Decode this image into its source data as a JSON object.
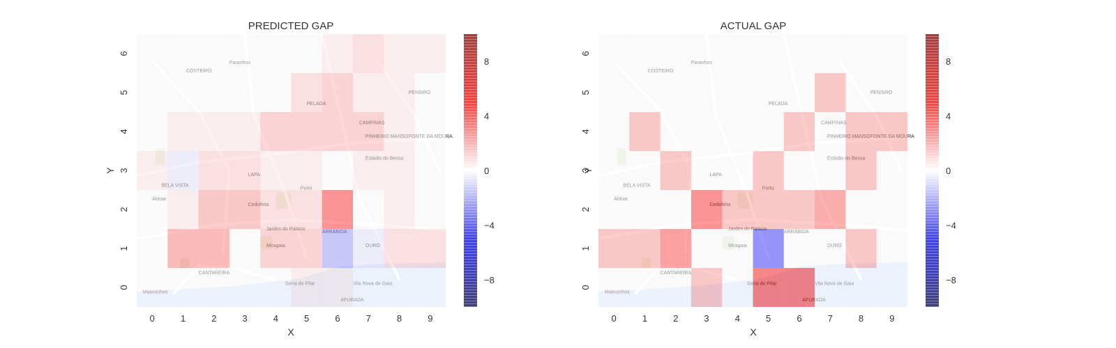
{
  "colors": {
    "map_base": "#f4f4f4",
    "road": "#ffffff",
    "water": "#d6e4f7",
    "park": "#e1ebd2",
    "map_label": "#b0b0b0",
    "text": "#333333"
  },
  "colorbar": {
    "ticks": [
      "8",
      "4",
      "0",
      "−4",
      "−8"
    ],
    "tick_values": [
      8,
      4,
      0,
      -4,
      -8
    ],
    "range": [
      -10,
      10
    ],
    "colormap": "seismic",
    "alpha": 0.5
  },
  "map_labels": [
    "Paranhos",
    "COSTEIRO",
    "PELADA",
    "CAMPINAS",
    "PENSIRO",
    "PINHEIRO MANSO",
    "FONTE DA MOURA",
    "Estádio do Bessa",
    "LAPA",
    "Porto",
    "Aldoar",
    "Cedofeita",
    "Jardim do Palácio",
    "Miragaia",
    "ARRÁBIDA",
    "OURO",
    "Vila Nova de Gaia",
    "Serra do Pilar",
    "AFURADA",
    "CANTAREIRA",
    "Matosinhos",
    "BELA VISTA"
  ],
  "chart_data": [
    {
      "type": "heatmap",
      "title": "PREDICTED GAP",
      "xlabel": "X",
      "ylabel": "Y",
      "x": [
        "0",
        "1",
        "2",
        "3",
        "4",
        "5",
        "6",
        "7",
        "8",
        "9"
      ],
      "y": [
        "0",
        "1",
        "2",
        "3",
        "4",
        "5",
        "6"
      ],
      "clim": [
        -10,
        10
      ],
      "values": [
        [
          0.0,
          0.0,
          0.0,
          0.0,
          0.0,
          0.5,
          0.5,
          0.0,
          0.0,
          0.0
        ],
        [
          0.0,
          2.5,
          2.5,
          0.0,
          1.5,
          1.5,
          -2.0,
          -0.5,
          1.0,
          1.0
        ],
        [
          0.0,
          0.5,
          2.0,
          2.0,
          1.0,
          1.0,
          4.0,
          0.0,
          0.5,
          0.0
        ],
        [
          0.5,
          -0.5,
          1.0,
          1.0,
          0.5,
          0.5,
          0.0,
          0.5,
          0.5,
          0.0
        ],
        [
          0.0,
          0.5,
          0.5,
          0.5,
          1.5,
          1.5,
          1.5,
          1.5,
          0.5,
          0.0
        ],
        [
          0.0,
          0.0,
          0.0,
          0.0,
          0.0,
          1.0,
          1.5,
          0.5,
          0.5,
          0.0
        ],
        [
          0.0,
          0.0,
          0.0,
          0.0,
          0.0,
          0.0,
          0.5,
          1.0,
          0.5,
          0.5
        ]
      ],
      "colorbar_ticks": [
        "8",
        "4",
        "0",
        "−4",
        "−8"
      ]
    },
    {
      "type": "heatmap",
      "title": "ACTUAL GAP",
      "xlabel": "X",
      "ylabel": "Y",
      "x": [
        "0",
        "1",
        "2",
        "3",
        "4",
        "5",
        "6",
        "7",
        "8",
        "9"
      ],
      "y": [
        "0",
        "1",
        "2",
        "3",
        "4",
        "5",
        "6"
      ],
      "clim": [
        -10,
        10
      ],
      "values": [
        [
          0.0,
          0.0,
          0.0,
          2.0,
          0.0,
          4.5,
          4.5,
          0.0,
          0.0,
          0.0
        ],
        [
          2.0,
          2.0,
          3.5,
          0.0,
          0.0,
          -4.0,
          0.0,
          0.0,
          2.0,
          0.0
        ],
        [
          0.0,
          0.0,
          0.0,
          4.0,
          2.0,
          2.0,
          2.0,
          3.0,
          0.0,
          0.0
        ],
        [
          0.0,
          0.0,
          2.0,
          0.0,
          0.0,
          2.0,
          0.0,
          0.0,
          2.0,
          0.0
        ],
        [
          0.0,
          2.0,
          0.0,
          0.0,
          0.0,
          0.0,
          2.0,
          0.0,
          2.0,
          2.0
        ],
        [
          0.0,
          0.0,
          0.0,
          0.0,
          0.0,
          0.0,
          0.0,
          2.0,
          0.0,
          0.0
        ],
        [
          0.0,
          0.0,
          0.0,
          0.0,
          0.0,
          0.0,
          0.0,
          0.0,
          0.0,
          0.0
        ]
      ],
      "colorbar_ticks": [
        "8",
        "4",
        "0",
        "−4",
        "−8"
      ]
    }
  ]
}
